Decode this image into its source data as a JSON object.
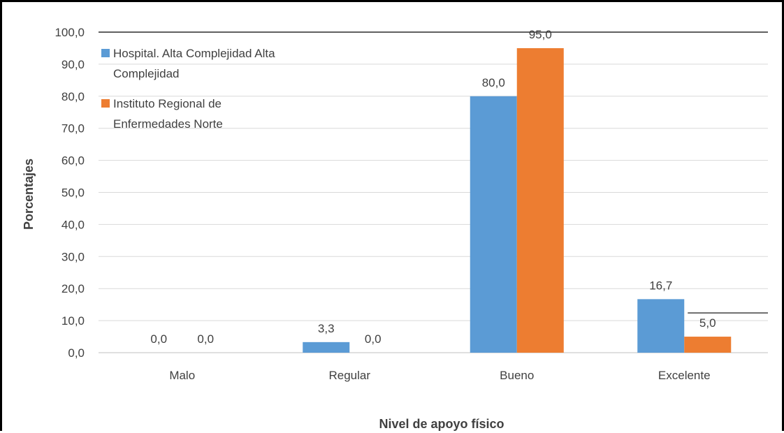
{
  "chart_data": {
    "type": "bar",
    "title": "",
    "xlabel": "Nivel de apoyo físico",
    "ylabel": "Porcentajes",
    "ylim": [
      0,
      100
    ],
    "ytick_step": 10,
    "ytick_labels": [
      "0,0",
      "10,0",
      "20,0",
      "30,0",
      "40,0",
      "50,0",
      "60,0",
      "70,0",
      "80,0",
      "90,0",
      "100,0"
    ],
    "categories": [
      "Malo",
      "Regular",
      "Bueno",
      "Excelente"
    ],
    "series": [
      {
        "name_lines": [
          "Hospital. Alta Complejidad Alta",
          "Complejidad"
        ],
        "color": "#5B9BD5",
        "values": [
          0.0,
          3.3,
          80.0,
          16.7
        ],
        "labels": [
          "0,0",
          "3,3",
          "80,0",
          "16,7"
        ]
      },
      {
        "name_lines": [
          "Instituto Regional de",
          "Enfermedades Norte"
        ],
        "color": "#ED7D31",
        "values": [
          0.0,
          0.0,
          95.0,
          5.0
        ],
        "labels": [
          "0,0",
          "0,0",
          "95,0",
          "5,0"
        ]
      }
    ],
    "grid": true,
    "legend_position": "top-left"
  }
}
